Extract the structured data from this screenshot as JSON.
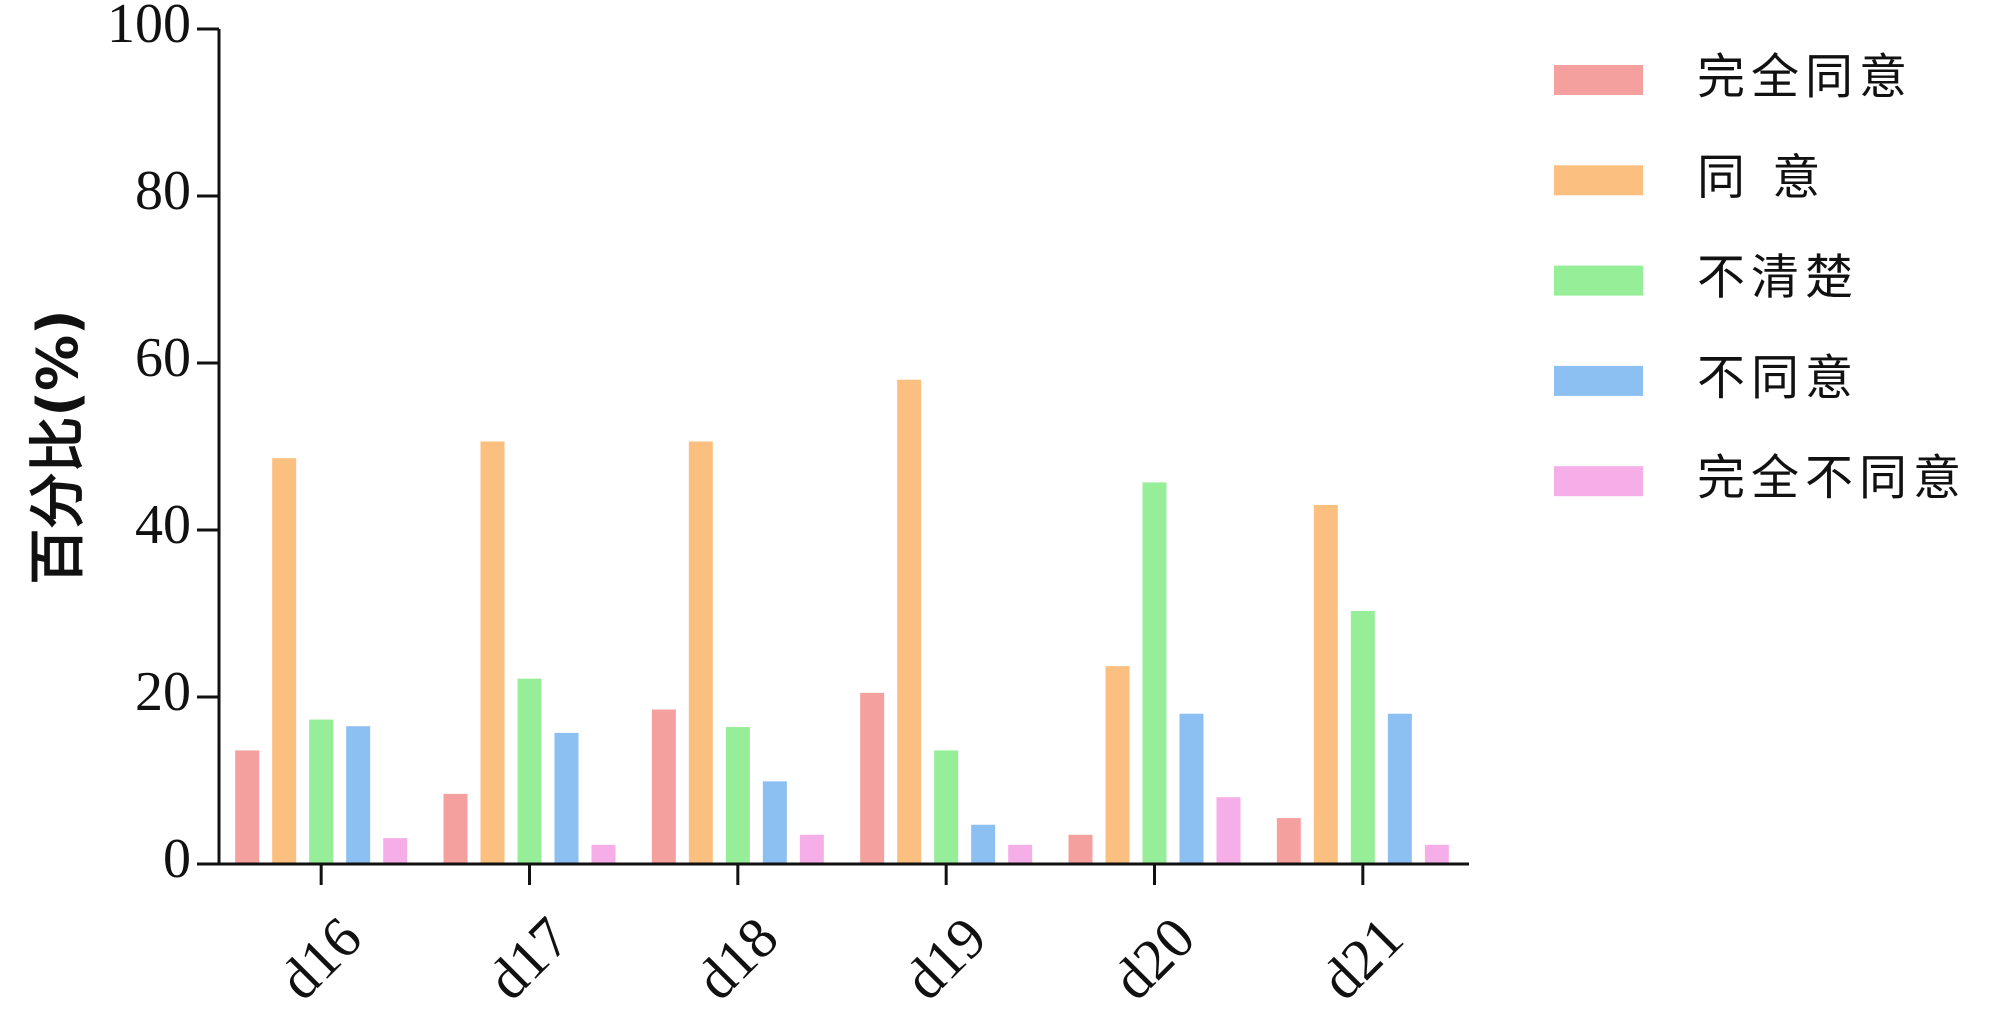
{
  "chart_data": {
    "type": "bar",
    "y_label": "百分比(%)",
    "categories": [
      "d16",
      "d17",
      "d18",
      "d19",
      "d20",
      "d21"
    ],
    "series": [
      {
        "name": "完全同意",
        "color": "#f4a09e",
        "values": [
          13.6,
          8.4,
          18.5,
          20.5,
          3.5,
          5.5
        ]
      },
      {
        "name": "同 意",
        "color": "#fbbf80",
        "values": [
          48.6,
          50.6,
          50.6,
          58.0,
          23.7,
          43.0
        ]
      },
      {
        "name": "不清楚",
        "color": "#97ee98",
        "values": [
          17.3,
          22.2,
          16.4,
          13.6,
          45.7,
          30.3
        ]
      },
      {
        "name": "不同意",
        "color": "#8cbff2",
        "values": [
          16.5,
          15.7,
          9.9,
          4.7,
          18.0,
          18.0
        ]
      },
      {
        "name": "完全不同意",
        "color": "#f6aee8",
        "values": [
          3.1,
          2.3,
          3.5,
          2.3,
          8.0,
          2.3
        ]
      }
    ],
    "ylim": [
      0,
      100
    ],
    "yticks": [
      0,
      20,
      40,
      60,
      80,
      100
    ],
    "grid": false,
    "legend": "right"
  }
}
